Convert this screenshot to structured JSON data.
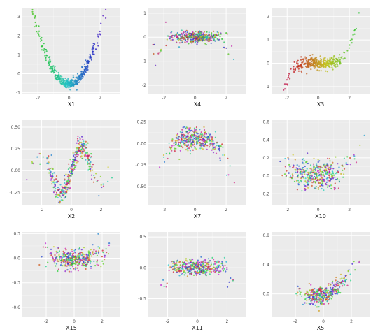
{
  "chart_data": [
    {
      "type": "scatter",
      "xlabel": "X1",
      "ylabel": "",
      "xlim": [
        -3,
        3.3
      ],
      "ylim": [
        -1.05,
        3.45
      ],
      "xticks": [
        -2,
        0,
        2
      ],
      "yticks": [
        -1,
        0,
        1,
        2,
        3
      ],
      "shape": "parabola",
      "shape_params": {
        "a": 0.72,
        "c": -0.55,
        "noise": 0.12
      },
      "color_mode": "gradient-green-purple"
    },
    {
      "type": "scatter",
      "xlabel": "X4",
      "ylabel": "",
      "xlim": [
        -3,
        3.3
      ],
      "ylim": [
        -2.35,
        1.2
      ],
      "xticks": [
        -2,
        0,
        2
      ],
      "yticks": [
        -2,
        -1,
        0,
        1
      ],
      "shape": "flat-outliers",
      "shape_params": {
        "level": 0.0,
        "noise": 0.12
      },
      "color_mode": "mixed"
    },
    {
      "type": "scatter",
      "xlabel": "X3",
      "ylabel": "",
      "xlim": [
        -3,
        3.3
      ],
      "ylim": [
        -1.3,
        2.35
      ],
      "xticks": [
        -2,
        0,
        2
      ],
      "yticks": [
        -1,
        0,
        1,
        2
      ],
      "shape": "cubic-ish",
      "shape_params": {
        "noise": 0.12
      },
      "color_mode": "gradient-pink-green"
    },
    {
      "type": "scatter",
      "xlabel": "X2",
      "ylabel": "",
      "xlim": [
        -3.3,
        3.3
      ],
      "ylim": [
        -0.4,
        0.58
      ],
      "xticks": [
        -2,
        0,
        2
      ],
      "yticks": [
        -0.25,
        0.0,
        0.25,
        0.5
      ],
      "shape": "wave",
      "shape_params": {
        "noise": 0.07
      },
      "color_mode": "wave"
    },
    {
      "type": "scatter",
      "xlabel": "X7",
      "ylabel": "",
      "xlim": [
        -3,
        3.3
      ],
      "ylim": [
        -0.72,
        0.27
      ],
      "xticks": [
        -2,
        0,
        2
      ],
      "yticks": [
        -0.5,
        -0.25,
        0.0,
        0.25
      ],
      "shape": "inverted-parabola",
      "shape_params": {
        "noise": 0.06
      },
      "color_mode": "mixed"
    },
    {
      "type": "scatter",
      "xlabel": "X10",
      "ylabel": "",
      "xlim": [
        -3,
        3.3
      ],
      "ylim": [
        -0.33,
        0.62
      ],
      "xticks": [
        -2,
        0,
        2
      ],
      "yticks": [
        -0.2,
        0.0,
        0.2,
        0.4,
        0.6
      ],
      "shape": "flat-cloud",
      "shape_params": {
        "level": 0.0,
        "noise": 0.08
      },
      "color_mode": "mixed"
    },
    {
      "type": "scatter",
      "xlabel": "X15",
      "ylabel": "",
      "xlim": [
        -3.7,
        3.3
      ],
      "ylim": [
        -0.72,
        0.32
      ],
      "xticks": [
        -2,
        0,
        2
      ],
      "yticks": [
        -0.6,
        -0.3,
        0.0,
        0.3
      ],
      "shape": "u-cloud",
      "shape_params": {
        "noise": 0.06
      },
      "color_mode": "mixed"
    },
    {
      "type": "scatter",
      "xlabel": "X11",
      "ylabel": "",
      "xlim": [
        -3.3,
        3.3
      ],
      "ylim": [
        -0.8,
        0.58
      ],
      "xticks": [
        -2,
        0,
        2
      ],
      "yticks": [
        -0.5,
        0.0,
        0.5
      ],
      "shape": "flat-cloud2",
      "shape_params": {
        "level": 0.0,
        "noise": 0.06
      },
      "color_mode": "mixed"
    },
    {
      "type": "scatter",
      "xlabel": "X5",
      "ylabel": "",
      "xlim": [
        -3.7,
        3.3
      ],
      "ylim": [
        -0.32,
        0.85
      ],
      "xticks": [
        -2,
        0,
        2
      ],
      "yticks": [
        0.0,
        0.4,
        0.8
      ],
      "shape": "rising-parabola",
      "shape_params": {
        "noise": 0.06
      },
      "color_mode": "mixed"
    }
  ]
}
